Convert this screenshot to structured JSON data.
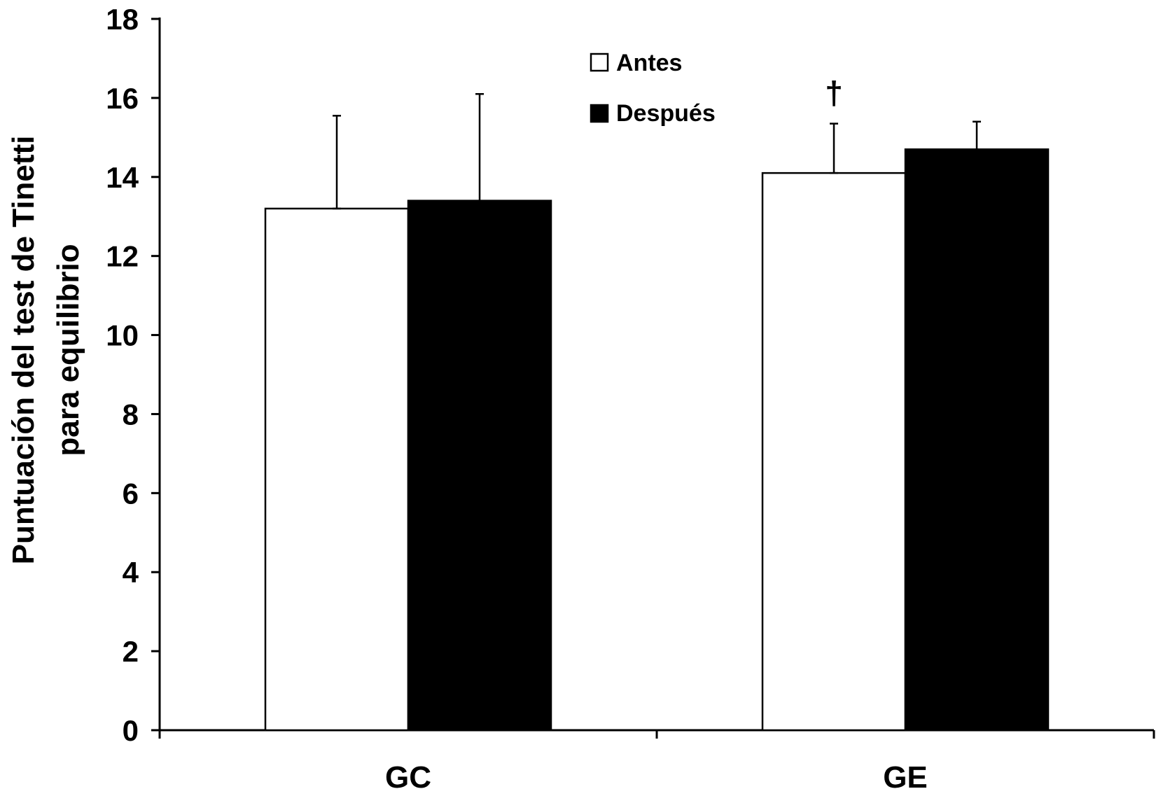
{
  "chart_data": {
    "type": "bar",
    "title": "",
    "xlabel": "",
    "ylabel": [
      "Puntuación del test de Tinetti",
      "para equilibrio"
    ],
    "categories": [
      "GC",
      "GE"
    ],
    "ylim": [
      0,
      18
    ],
    "yticks": [
      0,
      2,
      4,
      6,
      8,
      10,
      12,
      14,
      16,
      18
    ],
    "grid": false,
    "legend_position": "top-center",
    "series": [
      {
        "name": "Antes",
        "values": [
          13.2,
          14.1
        ],
        "errors": [
          2.35,
          1.25
        ],
        "color": "#ffffff"
      },
      {
        "name": "Después",
        "values": [
          13.4,
          14.7
        ],
        "errors": [
          2.7,
          0.7
        ],
        "color": "#000000"
      }
    ],
    "annotations": [
      {
        "text": "†",
        "category": "GE",
        "series": "Antes"
      }
    ]
  }
}
